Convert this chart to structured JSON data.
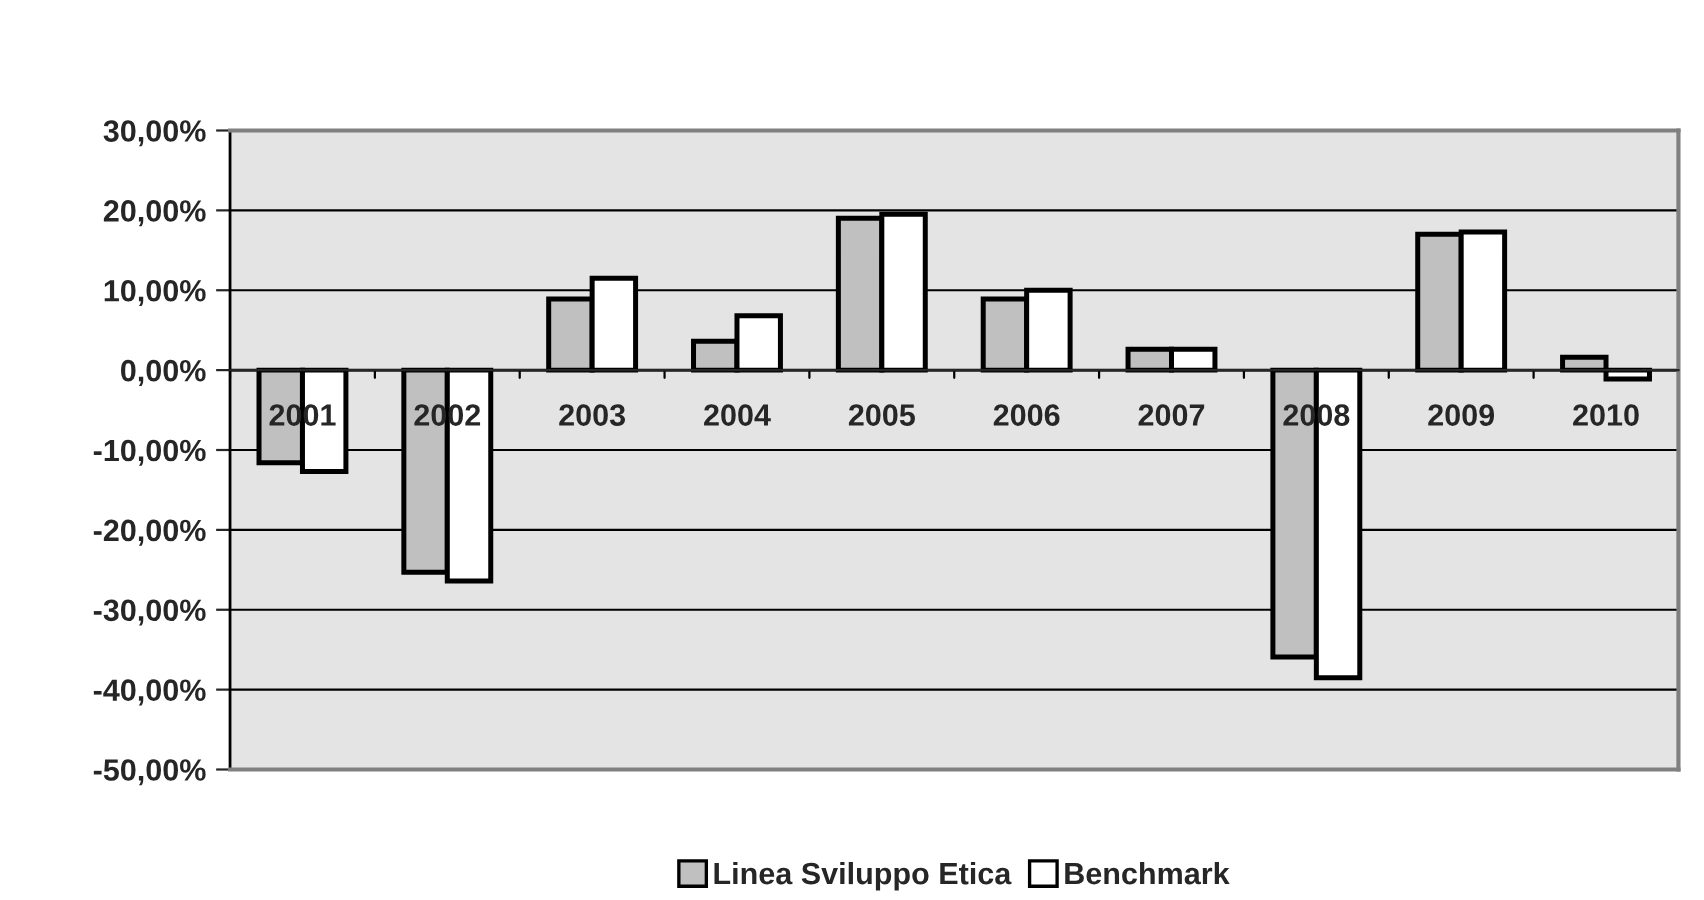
{
  "chart_data": {
    "type": "bar",
    "categories": [
      "2001",
      "2002",
      "2003",
      "2004",
      "2005",
      "2006",
      "2007",
      "2008",
      "2009",
      "2010"
    ],
    "series": [
      {
        "name": "Linea Sviluppo Etica",
        "color": "#c0c0c0",
        "values": [
          -11.6,
          -25.3,
          8.9,
          3.6,
          19.0,
          8.9,
          2.6,
          -35.9,
          17.0,
          1.6
        ]
      },
      {
        "name": "Benchmark",
        "color": "#ffffff",
        "values": [
          -12.7,
          -26.4,
          11.5,
          6.8,
          19.5,
          10.0,
          2.6,
          -38.5,
          17.3,
          -1.1
        ]
      }
    ],
    "ylim": [
      -50,
      30
    ],
    "yticks": [
      {
        "value": -50,
        "label": "-50,00%"
      },
      {
        "value": -40,
        "label": "-40,00%"
      },
      {
        "value": -30,
        "label": "-30,00%"
      },
      {
        "value": -20,
        "label": "-20,00%"
      },
      {
        "value": -10,
        "label": "-10,00%"
      },
      {
        "value": 0,
        "label": "0,00%"
      },
      {
        "value": 10,
        "label": "10,00%"
      },
      {
        "value": 20,
        "label": "20,00%"
      },
      {
        "value": 30,
        "label": "30,00%"
      }
    ],
    "grid": "y",
    "legend": "bottom"
  }
}
